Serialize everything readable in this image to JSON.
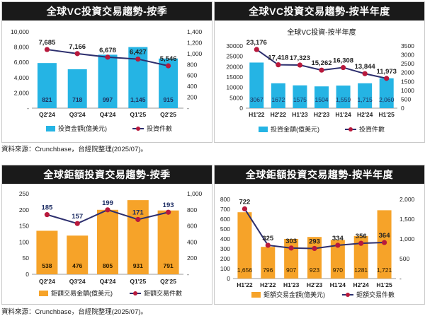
{
  "colors": {
    "vc_bar": "#25b4e4",
    "mega_bar": "#f6a329",
    "line": "#2d2f6e",
    "dot": "#b8193c",
    "vc_bar_label": "#1f2d5a",
    "count_label_blue": "#1c2c63",
    "count_label_dark": "#222222"
  },
  "sources": {
    "top": "資料來源：Crunchbase，台經院整理(2025/07)。",
    "bottom": "資料來源：Crunchbase，台經院整理(2025/07)。"
  },
  "chart_data": [
    {
      "id": "vc-quarterly",
      "panel_title": "全球VC投資交易趨勢-按季",
      "type": "bar",
      "categories": [
        "Q2'24",
        "Q3'24",
        "Q4'24",
        "Q1'25",
        "Q2'25"
      ],
      "series": [
        {
          "name": "投資金額(億美元)",
          "kind": "bar",
          "axis": "left",
          "values": [
            5910,
            5100,
            7000,
            8000,
            6500
          ],
          "labels": [
            "821",
            "718",
            "997",
            "1,145",
            "915"
          ]
        },
        {
          "name": "投資件數",
          "kind": "line",
          "axis": "right",
          "values": [
            1075,
            1000,
            935,
            900,
            776
          ],
          "labels": [
            "7,685",
            "7,166",
            "6,678",
            "6,427",
            "5,546"
          ]
        }
      ],
      "y_left": {
        "min": 0,
        "max": 10000,
        "ticks": [
          "-",
          "2,000",
          "4,000",
          "6,000",
          "8,000",
          "10,000"
        ]
      },
      "y_right": {
        "min": 0,
        "max": 1400,
        "ticks": [
          "-",
          "200",
          "400",
          "600",
          "800",
          "1,000",
          "1,200",
          "1,400"
        ]
      },
      "legend": [
        "投資金額(億美元)",
        "投資件數"
      ]
    },
    {
      "id": "vc-halfyear",
      "panel_title": "全球VC投資交易趨勢-按半年度",
      "type": "bar",
      "title": "全球VC投資-按半年度",
      "categories": [
        "H1'22",
        "H2'22",
        "H1'23",
        "H2'23",
        "H1'24",
        "H2'24",
        "H1'25"
      ],
      "series": [
        {
          "name": "投資金額(億美元)",
          "kind": "bar",
          "axis": "left",
          "values": [
            22000,
            12000,
            11000,
            10500,
            10900,
            12000,
            14400
          ],
          "labels": [
            "3067",
            "1672",
            "1575",
            "1504",
            "1,559",
            "1,715",
            "2,060"
          ]
        },
        {
          "name": "投資件數",
          "kind": "line",
          "axis": "right",
          "values": [
            3300,
            2440,
            2425,
            2140,
            2285,
            1940,
            1675
          ],
          "labels": [
            "23,176",
            "17,418",
            "17,323",
            "15,262",
            "16,308",
            "13,844",
            "11,973"
          ]
        }
      ],
      "y_left": {
        "min": 0,
        "max": 30000,
        "ticks": [
          "0",
          "5000",
          "10000",
          "15000",
          "20000",
          "25000",
          "30000"
        ]
      },
      "y_right": {
        "min": 0,
        "max": 3500,
        "ticks": [
          "0",
          "500",
          "1000",
          "1500",
          "2000",
          "2500",
          "3000",
          "3500"
        ]
      },
      "legend": [
        "投資金額(億美元)",
        "投資件數"
      ]
    },
    {
      "id": "mega-quarterly",
      "panel_title": "全球鉅額投資交易趨勢-按季",
      "type": "bar",
      "categories": [
        "Q2'24",
        "Q3'24",
        "Q4'24",
        "Q1'25",
        "Q2'25"
      ],
      "series": [
        {
          "name": "鉅額交易金額(億美元)",
          "kind": "bar",
          "axis": "left",
          "values": [
            135,
            120,
            200,
            230,
            198
          ],
          "labels": [
            "538",
            "476",
            "805",
            "931",
            "791"
          ]
        },
        {
          "name": "鉅額交易件數",
          "kind": "line",
          "axis": "right",
          "values": [
            740,
            630,
            800,
            680,
            770
          ],
          "labels": [
            "185",
            "157",
            "199",
            "171",
            "193"
          ]
        }
      ],
      "y_left": {
        "min": 0,
        "max": 250,
        "ticks": [
          "0",
          "50",
          "100",
          "150",
          "200",
          "250"
        ]
      },
      "y_right": {
        "min": 0,
        "max": 1000,
        "ticks": [
          "-",
          "200",
          "400",
          "600",
          "800",
          "1,000"
        ]
      },
      "legend": [
        "鉅額交易金額(億美元)",
        "鉅額交易件數"
      ]
    },
    {
      "id": "mega-halfyear",
      "panel_title": "全球鉅額投資交易趨勢-按半年度",
      "type": "bar",
      "categories": [
        "H1'22",
        "H2'22",
        "H1'23",
        "H2'23",
        "H1'24",
        "H2'24",
        "H1'25"
      ],
      "series": [
        {
          "name": "鉅額交易金額(億美元)",
          "kind": "bar",
          "axis": "left",
          "values": [
            670,
            320,
            400,
            420,
            390,
            430,
            690
          ],
          "labels": [
            "1,656",
            "796",
            "907",
            "923",
            "970",
            "1281",
            "1,721"
          ]
        },
        {
          "name": "鉅額交易件數",
          "kind": "line",
          "axis": "right",
          "values": [
            1760,
            840,
            770,
            760,
            840,
            890,
            910
          ],
          "labels": [
            "722",
            "325",
            "303",
            "293",
            "334",
            "356",
            "364"
          ]
        }
      ],
      "y_left": {
        "min": 0,
        "max": 800,
        "ticks": [
          "0",
          "100",
          "200",
          "300",
          "400",
          "500",
          "600",
          "700",
          "800"
        ]
      },
      "y_right": {
        "min": 0,
        "max": 2000,
        "ticks": [
          "-",
          "500",
          "1,000",
          "1,500",
          "2,000"
        ]
      },
      "legend": [
        "鉅額交易金額(億美元)",
        "鉅額交易件數"
      ]
    }
  ]
}
